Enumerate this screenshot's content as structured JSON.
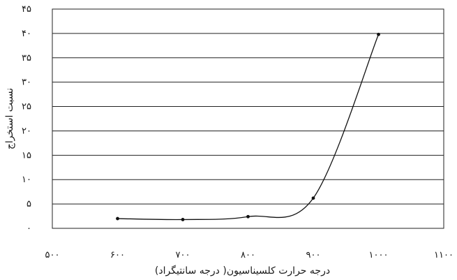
{
  "chart_data": {
    "type": "line",
    "title": "",
    "xlabel": "درجه حرارت کلسیناسیون( درجه سانتیگراد)",
    "ylabel": "نسبت استخراج",
    "xlim": [
      500,
      1100
    ],
    "ylim": [
      0,
      45
    ],
    "x_ticks": [
      500,
      600,
      700,
      800,
      900,
      1000,
      1100
    ],
    "x_tick_labels": [
      "۵۰۰",
      "۶۰۰",
      "۷۰۰",
      "۸۰۰",
      "۹۰۰",
      "۱۰۰۰",
      "۱۱۰۰"
    ],
    "y_ticks": [
      0,
      5,
      10,
      15,
      20,
      25,
      30,
      35,
      40,
      45
    ],
    "y_tick_labels": [
      "۰",
      "۵",
      "۱۰",
      "۱۵",
      "۲۰",
      "۲۵",
      "۳۰",
      "۳۵",
      "۴۰",
      "۴۵"
    ],
    "grid": true,
    "series": [
      {
        "x": [
          600,
          700,
          800,
          900,
          1000
        ],
        "y": [
          2.0,
          1.8,
          2.4,
          6.2,
          39.8
        ]
      }
    ],
    "colors": {
      "line": "#111111",
      "grid": "#222222"
    }
  }
}
